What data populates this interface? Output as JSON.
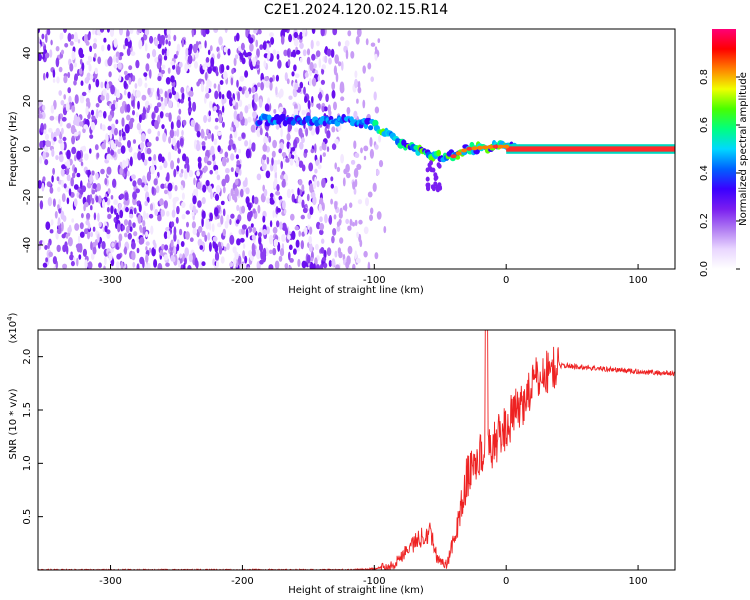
{
  "title": "C2E1.2024.120.02.15.R14",
  "colors": {
    "snr_line": "#ee2222",
    "axis": "#000000",
    "background": "#ffffff",
    "colormap": [
      "#ffffff",
      "#e9d6ff",
      "#b07bf2",
      "#7a1ef0",
      "#3a00ff",
      "#0060ff",
      "#00d8ff",
      "#00ff80",
      "#48ff00",
      "#f0ff00",
      "#ff8000",
      "#ff0000",
      "#ff0077"
    ]
  },
  "chart_data": [
    {
      "type": "heatmap",
      "name": "spectrogram",
      "xlabel": "Height of straight line (km)",
      "ylabel": "Frequency (Hz)",
      "xlim": [
        -355,
        128
      ],
      "ylim": [
        -50,
        50
      ],
      "x_ticks": [
        -300,
        -200,
        -100,
        0,
        100
      ],
      "y_ticks": [
        -40,
        -20,
        0,
        20,
        40
      ],
      "colorbar": {
        "label": "Normalized spectral amplitude",
        "range": [
          0,
          1
        ],
        "ticks": [
          "0.0",
          "0.2",
          "0.4",
          "0.6",
          "0.8"
        ]
      },
      "features": {
        "noise_region_x": [
          -355,
          -100
        ],
        "signal_trace": [
          [
            -188,
            12
          ],
          [
            -150,
            12
          ],
          [
            -120,
            12
          ],
          [
            -100,
            10
          ],
          [
            -85,
            4
          ],
          [
            -70,
            0
          ],
          [
            -55,
            -3
          ],
          [
            -40,
            -3
          ],
          [
            -30,
            0
          ],
          [
            -10,
            1
          ],
          [
            0,
            1
          ],
          [
            128,
            0
          ]
        ],
        "tone_band": {
          "x": [
            0,
            128
          ],
          "y_center": 0,
          "halfwidth": 2
        }
      }
    },
    {
      "type": "line",
      "name": "snr",
      "xlabel": "Height of straight line (km)",
      "ylabel": "SNR (10 * v/v)",
      "y_multiplier_label": "(x10",
      "y_multiplier_exp": "4",
      "xlim": [
        -355,
        128
      ],
      "ylim": [
        0,
        2.25
      ],
      "x_ticks": [
        -300,
        -200,
        -100,
        0,
        100
      ],
      "y_ticks": [
        "0.5",
        "1.0",
        "1.5",
        "2.0"
      ],
      "profile": [
        [
          -355,
          0.0
        ],
        [
          -120,
          0.0
        ],
        [
          -100,
          0.01
        ],
        [
          -85,
          0.05
        ],
        [
          -75,
          0.2
        ],
        [
          -65,
          0.3
        ],
        [
          -58,
          0.38
        ],
        [
          -52,
          0.1
        ],
        [
          -45,
          0.05
        ],
        [
          -38,
          0.35
        ],
        [
          -30,
          0.85
        ],
        [
          -22,
          1.05
        ],
        [
          -15,
          1.1
        ],
        [
          -10,
          1.18
        ],
        [
          -2,
          1.3
        ],
        [
          5,
          1.45
        ],
        [
          12,
          1.55
        ],
        [
          20,
          1.75
        ],
        [
          30,
          1.85
        ],
        [
          40,
          1.92
        ],
        [
          60,
          1.9
        ],
        [
          80,
          1.88
        ],
        [
          100,
          1.86
        ],
        [
          115,
          1.85
        ],
        [
          128,
          1.84
        ]
      ]
    }
  ]
}
